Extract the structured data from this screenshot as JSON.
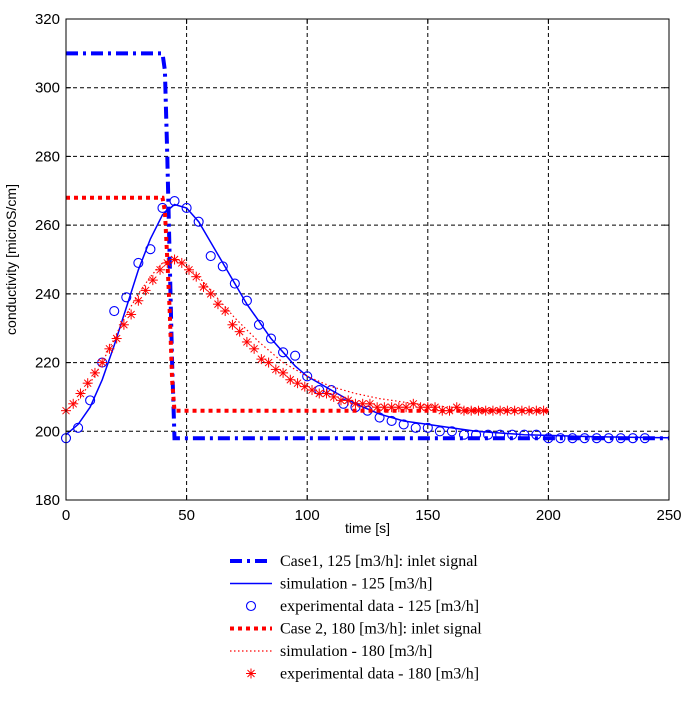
{
  "chart_data": {
    "type": "line",
    "title": "",
    "xlabel": "time [s]",
    "ylabel": "conductivity [microS/cm]",
    "xlim": [
      0,
      250
    ],
    "ylim": [
      180,
      320
    ],
    "xticks": [
      0,
      50,
      100,
      150,
      200,
      250
    ],
    "yticks": [
      180,
      200,
      220,
      240,
      260,
      280,
      300,
      320
    ],
    "grid": true,
    "legend_position": "below",
    "series": [
      {
        "name": "Case1, 125 [m3/h]: inlet signal",
        "color": "#0000ff",
        "style": "dashdot-thick",
        "x": [
          0,
          40,
          41,
          42,
          43,
          44,
          45,
          250
        ],
        "y": [
          310,
          310,
          305,
          280,
          250,
          220,
          198,
          198
        ]
      },
      {
        "name": "simulation - 125 [m3/h]",
        "color": "#0000ff",
        "style": "solid",
        "x": [
          0,
          5,
          10,
          15,
          20,
          25,
          30,
          35,
          40,
          45,
          50,
          55,
          60,
          65,
          70,
          75,
          80,
          85,
          90,
          95,
          100,
          110,
          120,
          130,
          140,
          150,
          160,
          170,
          180,
          190,
          200,
          210,
          220,
          230,
          240,
          250
        ],
        "y": [
          199,
          202,
          207,
          215,
          225,
          236,
          247,
          256,
          263,
          266,
          265,
          261,
          255,
          249,
          243,
          237,
          232,
          227,
          223,
          219,
          216,
          212,
          208,
          205,
          203,
          202,
          201,
          200,
          199.5,
          199,
          198.8,
          198.6,
          198.4,
          198.3,
          198.2,
          198.1
        ]
      },
      {
        "name": "experimental data - 125 [m3/h]",
        "color": "#0000ff",
        "style": "circle",
        "x": [
          0,
          5,
          10,
          15,
          20,
          25,
          30,
          35,
          40,
          45,
          50,
          55,
          60,
          65,
          70,
          75,
          80,
          85,
          90,
          95,
          100,
          105,
          110,
          115,
          120,
          125,
          130,
          135,
          140,
          145,
          150,
          155,
          160,
          165,
          170,
          175,
          180,
          185,
          190,
          195,
          200,
          205,
          210,
          215,
          220,
          225,
          230,
          235,
          240
        ],
        "y": [
          198,
          201,
          209,
          220,
          235,
          239,
          249,
          253,
          265,
          267,
          265,
          261,
          251,
          248,
          243,
          238,
          231,
          227,
          223,
          222,
          216,
          212,
          212,
          208,
          207,
          206,
          204,
          203,
          202,
          201,
          201,
          200,
          200,
          199,
          199,
          199,
          199,
          199,
          199,
          199,
          198,
          198,
          198,
          198,
          198,
          198,
          198,
          198,
          198
        ]
      },
      {
        "name": "Case 2, 180 [m3/h]: inlet signal",
        "color": "#ff0000",
        "style": "dotted-thick",
        "x": [
          0,
          40,
          41,
          42,
          43,
          44,
          45,
          200
        ],
        "y": [
          268,
          268,
          264,
          250,
          235,
          215,
          206,
          206
        ]
      },
      {
        "name": "simulation - 180 [m3/h]",
        "color": "#ff0000",
        "style": "dotted",
        "x": [
          0,
          5,
          10,
          15,
          20,
          25,
          30,
          35,
          40,
          45,
          50,
          55,
          60,
          70,
          80,
          90,
          100,
          110,
          120,
          130,
          140,
          150,
          160,
          170,
          180,
          190,
          200
        ],
        "y": [
          206,
          209,
          214,
          220,
          227,
          234,
          240,
          245,
          249,
          250,
          248,
          245,
          241,
          233,
          226,
          220,
          216,
          213,
          211,
          209.5,
          208.5,
          207.5,
          207,
          206.7,
          206.4,
          206.2,
          206
        ]
      },
      {
        "name": "experimental data - 180 [m3/h]",
        "color": "#ff0000",
        "style": "asterisk",
        "x": [
          0,
          3,
          6,
          9,
          12,
          15,
          18,
          21,
          24,
          27,
          30,
          33,
          36,
          39,
          42,
          45,
          48,
          51,
          54,
          57,
          60,
          63,
          66,
          69,
          72,
          75,
          78,
          81,
          84,
          87,
          90,
          93,
          96,
          99,
          102,
          105,
          108,
          111,
          114,
          117,
          120,
          123,
          126,
          129,
          132,
          135,
          138,
          141,
          144,
          147,
          150,
          153,
          156,
          159,
          162,
          165,
          168,
          171,
          174,
          177,
          180,
          183,
          186,
          189,
          192,
          195,
          198
        ],
        "y": [
          206,
          208,
          211,
          214,
          217,
          220,
          224,
          227,
          231,
          234,
          238,
          241,
          244,
          247,
          249,
          250,
          249,
          247,
          245,
          242,
          240,
          237,
          235,
          231,
          229,
          226,
          224,
          221,
          220,
          218,
          217,
          215,
          214,
          213,
          212,
          211,
          211,
          210,
          209,
          209,
          208,
          208,
          208,
          207,
          207,
          207,
          207,
          207,
          208,
          207,
          207,
          207,
          206,
          206,
          207,
          206,
          206,
          206,
          206,
          206,
          206,
          206,
          206,
          206,
          206,
          206,
          206
        ]
      }
    ]
  },
  "legend": [
    "Case1, 125 [m3/h]: inlet signal",
    "simulation - 125 [m3/h]",
    "experimental data - 125 [m3/h]",
    "Case 2, 180 [m3/h]: inlet signal",
    "simulation - 180 [m3/h]",
    "experimental data - 180 [m3/h]"
  ]
}
